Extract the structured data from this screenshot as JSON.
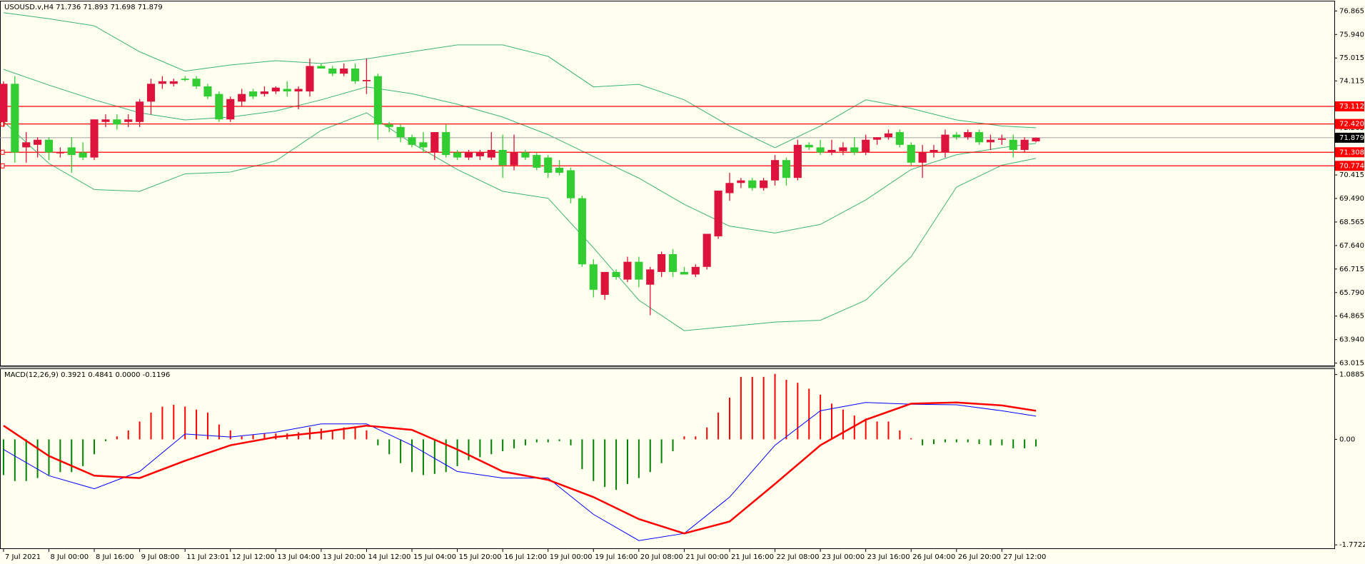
{
  "chart_data": [
    {
      "type": "candlestick",
      "title": "USOUSD.v,H4  71.736 71.893 71.698 71.879",
      "xlim": [
        -0.31,
        117.3
      ],
      "ylim": [
        62.92,
        77.24
      ],
      "yticks": [
        76.865,
        {
          "value": 75.94,
          "label": "75.940"
        },
        75.015,
        74.115,
        72.265,
        70.415,
        {
          "value": 69.49,
          "label": "69.490"
        },
        68.565,
        {
          "value": 67.64,
          "label": "67.640"
        },
        66.715,
        {
          "value": 65.79,
          "label": "65.790"
        },
        64.865,
        {
          "value": 63.94,
          "label": "63.940"
        },
        63.015
      ],
      "up_color": "#dc143c",
      "down_color": "#32cd32",
      "open": [
        72.5,
        74.0,
        71.5,
        71.6,
        71.8,
        71.3,
        71.5,
        71.3,
        71.1,
        72.5,
        72.6,
        72.5,
        72.5,
        73.3,
        74.0,
        74.0,
        74.2,
        74.2,
        73.9,
        73.6,
        72.6,
        73.3,
        73.7,
        73.6,
        73.7,
        73.8,
        73.7,
        73.7,
        74.7,
        74.6,
        74.4,
        74.6,
        74.1,
        74.3,
        72.4,
        72.3,
        71.9,
        71.7,
        71.3,
        72.1,
        71.3,
        71.1,
        71.15,
        71.1,
        71.4,
        70.8,
        71.3,
        71.2,
        71.1,
        70.7,
        70.6,
        69.5,
        66.9,
        65.7,
        66.6,
        66.3,
        67.0,
        66.1,
        66.6,
        67.3,
        66.6,
        66.5,
        66.8,
        68.0,
        69.7,
        70.1,
        70.2,
        69.9,
        70.2,
        71.0,
        70.3,
        71.6,
        71.5,
        71.3,
        71.35,
        71.5,
        71.3,
        71.8,
        71.9,
        72.1,
        71.6,
        70.9,
        71.3,
        71.3,
        72.0,
        71.9,
        72.1,
        71.7,
        71.8,
        71.8,
        71.4,
        71.736
      ],
      "high": [
        74.1,
        74.3,
        72.1,
        71.9,
        71.9,
        71.5,
        71.9,
        71.7,
        72.6,
        72.8,
        72.8,
        72.8,
        73.4,
        74.2,
        74.3,
        74.2,
        74.3,
        74.3,
        74.0,
        73.7,
        73.5,
        73.8,
        73.8,
        73.9,
        73.9,
        74.1,
        73.9,
        75.0,
        74.8,
        74.7,
        74.8,
        74.8,
        75.0,
        74.4,
        72.5,
        72.4,
        72.0,
        72.1,
        72.1,
        72.4,
        71.4,
        71.4,
        71.4,
        72.1,
        72.0,
        72.0,
        71.4,
        71.3,
        71.2,
        71.0,
        70.7,
        69.6,
        67.1,
        66.6,
        66.7,
        67.2,
        67.2,
        66.8,
        67.4,
        67.5,
        66.8,
        66.9,
        68.1,
        69.8,
        70.5,
        70.3,
        70.3,
        70.3,
        71.2,
        71.1,
        71.8,
        71.7,
        71.8,
        71.8,
        71.7,
        71.9,
        72.0,
        71.9,
        72.2,
        72.2,
        71.7,
        71.6,
        71.6,
        72.2,
        72.1,
        72.2,
        72.2,
        72.0,
        72.0,
        72.0,
        71.9,
        71.893
      ],
      "low": [
        72.3,
        70.9,
        70.9,
        71.1,
        71.0,
        71.1,
        70.5,
        71.0,
        71.0,
        72.3,
        72.2,
        72.3,
        72.3,
        72.8,
        73.8,
        73.9,
        74.1,
        73.8,
        73.4,
        72.5,
        72.5,
        73.1,
        73.4,
        73.5,
        73.6,
        73.5,
        73.0,
        73.5,
        74.6,
        74.3,
        74.3,
        74.0,
        73.6,
        71.8,
        72.1,
        71.7,
        71.5,
        71.3,
        71.0,
        71.1,
        71.0,
        71.0,
        71.0,
        71.0,
        70.3,
        70.6,
        71.0,
        70.6,
        70.3,
        70.4,
        69.3,
        66.8,
        65.6,
        65.5,
        66.3,
        66.2,
        66.0,
        64.9,
        66.4,
        66.4,
        66.5,
        66.4,
        66.7,
        67.9,
        69.4,
        69.9,
        69.8,
        69.8,
        70.0,
        70.0,
        70.2,
        71.4,
        71.2,
        71.2,
        71.2,
        71.2,
        71.2,
        71.6,
        71.8,
        71.5,
        70.8,
        70.3,
        71.1,
        71.1,
        71.8,
        71.8,
        71.6,
        71.4,
        71.6,
        71.1,
        71.3,
        71.698
      ],
      "close": [
        74.0,
        71.3,
        71.7,
        71.8,
        71.3,
        71.3,
        71.2,
        71.1,
        72.6,
        72.6,
        72.4,
        72.6,
        73.3,
        74.0,
        74.1,
        74.1,
        74.15,
        73.9,
        73.5,
        72.6,
        73.4,
        73.6,
        73.5,
        73.7,
        73.85,
        73.7,
        73.8,
        74.7,
        74.6,
        74.4,
        74.6,
        74.1,
        74.15,
        72.4,
        72.3,
        71.9,
        71.6,
        71.5,
        72.1,
        71.2,
        71.1,
        71.3,
        71.3,
        71.4,
        70.8,
        71.3,
        71.1,
        70.7,
        70.5,
        70.5,
        69.5,
        66.9,
        65.9,
        66.6,
        66.4,
        67.0,
        66.3,
        66.7,
        67.3,
        66.6,
        66.5,
        66.8,
        68.1,
        69.8,
        70.1,
        70.2,
        69.9,
        70.2,
        71.0,
        70.3,
        71.6,
        71.5,
        71.3,
        71.4,
        71.5,
        71.3,
        71.8,
        71.9,
        72.05,
        71.6,
        70.9,
        71.3,
        71.4,
        72.0,
        71.9,
        72.1,
        71.7,
        71.8,
        71.85,
        71.4,
        71.8,
        71.879
      ],
      "series": [
        {
          "color": "#3cb371",
          "x": [
            0,
            4,
            8,
            12,
            16,
            20,
            24,
            28,
            32,
            36,
            40,
            44,
            48,
            52,
            56,
            60,
            64,
            68,
            72,
            76,
            80,
            84,
            88,
            91
          ],
          "values": [
            76.8,
            76.56,
            76.28,
            75.26,
            74.5,
            74.74,
            74.91,
            74.8,
            74.98,
            75.26,
            75.53,
            75.53,
            75.08,
            73.88,
            73.98,
            73.37,
            72.34,
            71.49,
            72.34,
            73.37,
            73.03,
            72.58,
            72.34,
            72.27
          ]
        },
        {
          "color": "#3cb371",
          "x": [
            0,
            4,
            8,
            12,
            16,
            20,
            24,
            28,
            32,
            36,
            40,
            44,
            48,
            52,
            56,
            60,
            64,
            68,
            72,
            76,
            80,
            84,
            88,
            91
          ],
          "values": [
            74.57,
            73.95,
            73.37,
            72.86,
            72.58,
            72.69,
            72.93,
            73.37,
            73.88,
            73.61,
            73.2,
            72.69,
            72.0,
            71.14,
            70.29,
            69.26,
            68.4,
            68.13,
            68.47,
            69.43,
            70.63,
            71.21,
            71.49,
            71.66
          ]
        },
        {
          "color": "#3cb371",
          "x": [
            0,
            4,
            8,
            12,
            16,
            20,
            24,
            28,
            32,
            36,
            40,
            44,
            48,
            52,
            56,
            60,
            64,
            68,
            72,
            76,
            80,
            84,
            88,
            91
          ],
          "values": [
            72.52,
            70.87,
            69.84,
            69.77,
            70.46,
            70.53,
            70.97,
            72.17,
            72.86,
            71.66,
            70.63,
            69.77,
            69.5,
            67.55,
            65.49,
            64.29,
            64.46,
            64.63,
            64.7,
            65.49,
            67.2,
            69.94,
            70.8,
            71.07
          ]
        }
      ],
      "levels": [
        73.112,
        {
          "value": 72.42,
          "label": "72.420"
        },
        71.308,
        70.774
      ],
      "level_color": "#ff0000",
      "last_price": 71.879
    },
    {
      "type": "macd",
      "title": "MACD(12,26,9) 0.3921 0.4841 0.0000 -0.1196",
      "xlim": [
        -0.31,
        117.3
      ],
      "ylim": [
        -1.83,
        1.18
      ],
      "yticks": [
        1.0885,
        {
          "value": 0,
          "label": "0.00"
        },
        -1.7722
      ],
      "xticks": [
        {
          "value": 0,
          "label": "7 Jul 2021"
        },
        {
          "value": 4,
          "label": "8 Jul 00:00"
        },
        {
          "value": 8,
          "label": "8 Jul 16:00"
        },
        {
          "value": 12,
          "label": "9 Jul 08:00"
        },
        {
          "value": 16,
          "label": "11 Jul 23:01"
        },
        {
          "value": 20,
          "label": "12 Jul 12:00"
        },
        {
          "value": 24,
          "label": "13 Jul 04:00"
        },
        {
          "value": 28,
          "label": "13 Jul 20:00"
        },
        {
          "value": 32,
          "label": "14 Jul 12:00"
        },
        {
          "value": 36,
          "label": "15 Jul 04:00"
        },
        {
          "value": 40,
          "label": "15 Jul 20:00"
        },
        {
          "value": 44,
          "label": "16 Jul 12:00"
        },
        {
          "value": 48,
          "label": "19 Jul 00:00"
        },
        {
          "value": 52,
          "label": "19 Jul 16:00"
        },
        {
          "value": 56,
          "label": "20 Jul 08:00"
        },
        {
          "value": 60,
          "label": "21 Jul 00:00"
        },
        {
          "value": 64,
          "label": "21 Jul 16:00"
        },
        {
          "value": 68,
          "label": "22 Jul 08:00"
        },
        {
          "value": 72,
          "label": "23 Jul 00:00"
        },
        {
          "value": 76,
          "label": "23 Jul 16:00"
        },
        {
          "value": 80,
          "label": "26 Jul 04:00"
        },
        {
          "value": 84,
          "label": "26 Jul 20:00"
        },
        {
          "value": 88,
          "label": "27 Jul 12:00"
        }
      ],
      "histogram": [
        -0.6,
        -0.7,
        -0.7,
        -0.65,
        -0.6,
        -0.55,
        -0.55,
        -0.45,
        -0.25,
        -0.03,
        0.05,
        0.15,
        0.3,
        0.45,
        0.55,
        0.58,
        0.55,
        0.5,
        0.45,
        0.25,
        0.15,
        0.05,
        0.08,
        0.1,
        0.1,
        0.1,
        0.12,
        0.2,
        0.18,
        0.15,
        0.2,
        0.2,
        0.15,
        -0.1,
        -0.25,
        -0.4,
        -0.55,
        -0.6,
        -0.58,
        -0.55,
        -0.45,
        -0.35,
        -0.3,
        -0.25,
        -0.2,
        -0.15,
        -0.1,
        -0.05,
        -0.05,
        -0.03,
        -0.1,
        -0.5,
        -0.7,
        -0.8,
        -0.85,
        -0.75,
        -0.65,
        -0.55,
        -0.4,
        -0.2,
        0.05,
        0.05,
        0.2,
        0.45,
        0.7,
        1.05,
        1.05,
        1.05,
        1.1,
        1.0,
        0.95,
        0.85,
        0.75,
        0.6,
        0.5,
        0.4,
        0.35,
        0.3,
        0.3,
        0.15,
        0.02,
        -0.1,
        -0.08,
        -0.05,
        -0.05,
        -0.05,
        -0.08,
        -0.1,
        -0.1,
        -0.15,
        -0.15,
        -0.12
      ],
      "up_color": "#ff0000",
      "down_color": "#008000",
      "series": [
        {
          "color": "#0000ff",
          "width": 1,
          "x": [
            0,
            4,
            8,
            12,
            16,
            20,
            24,
            28,
            32,
            36,
            40,
            44,
            48,
            52,
            56,
            60,
            64,
            68,
            72,
            76,
            80,
            84,
            88,
            91
          ],
          "values": [
            -0.17,
            -0.61,
            -0.83,
            -0.54,
            0.09,
            0.04,
            0.12,
            0.26,
            0.26,
            -0.1,
            -0.54,
            -0.65,
            -0.65,
            -1.26,
            -1.7,
            -1.58,
            -0.97,
            -0.1,
            0.48,
            0.62,
            0.59,
            0.58,
            0.48,
            0.39
          ]
        },
        {
          "color": "#ff0000",
          "width": 2.5,
          "x": [
            0,
            4,
            8,
            12,
            16,
            20,
            24,
            28,
            32,
            36,
            40,
            44,
            48,
            52,
            56,
            60,
            64,
            68,
            72,
            76,
            80,
            84,
            88,
            91
          ],
          "values": [
            0.23,
            -0.28,
            -0.61,
            -0.65,
            -0.36,
            -0.1,
            0.04,
            0.12,
            0.23,
            0.16,
            -0.17,
            -0.54,
            -0.68,
            -0.97,
            -1.34,
            -1.58,
            -1.38,
            -0.75,
            -0.1,
            0.33,
            0.6,
            0.62,
            0.57,
            0.48
          ]
        }
      ]
    }
  ]
}
